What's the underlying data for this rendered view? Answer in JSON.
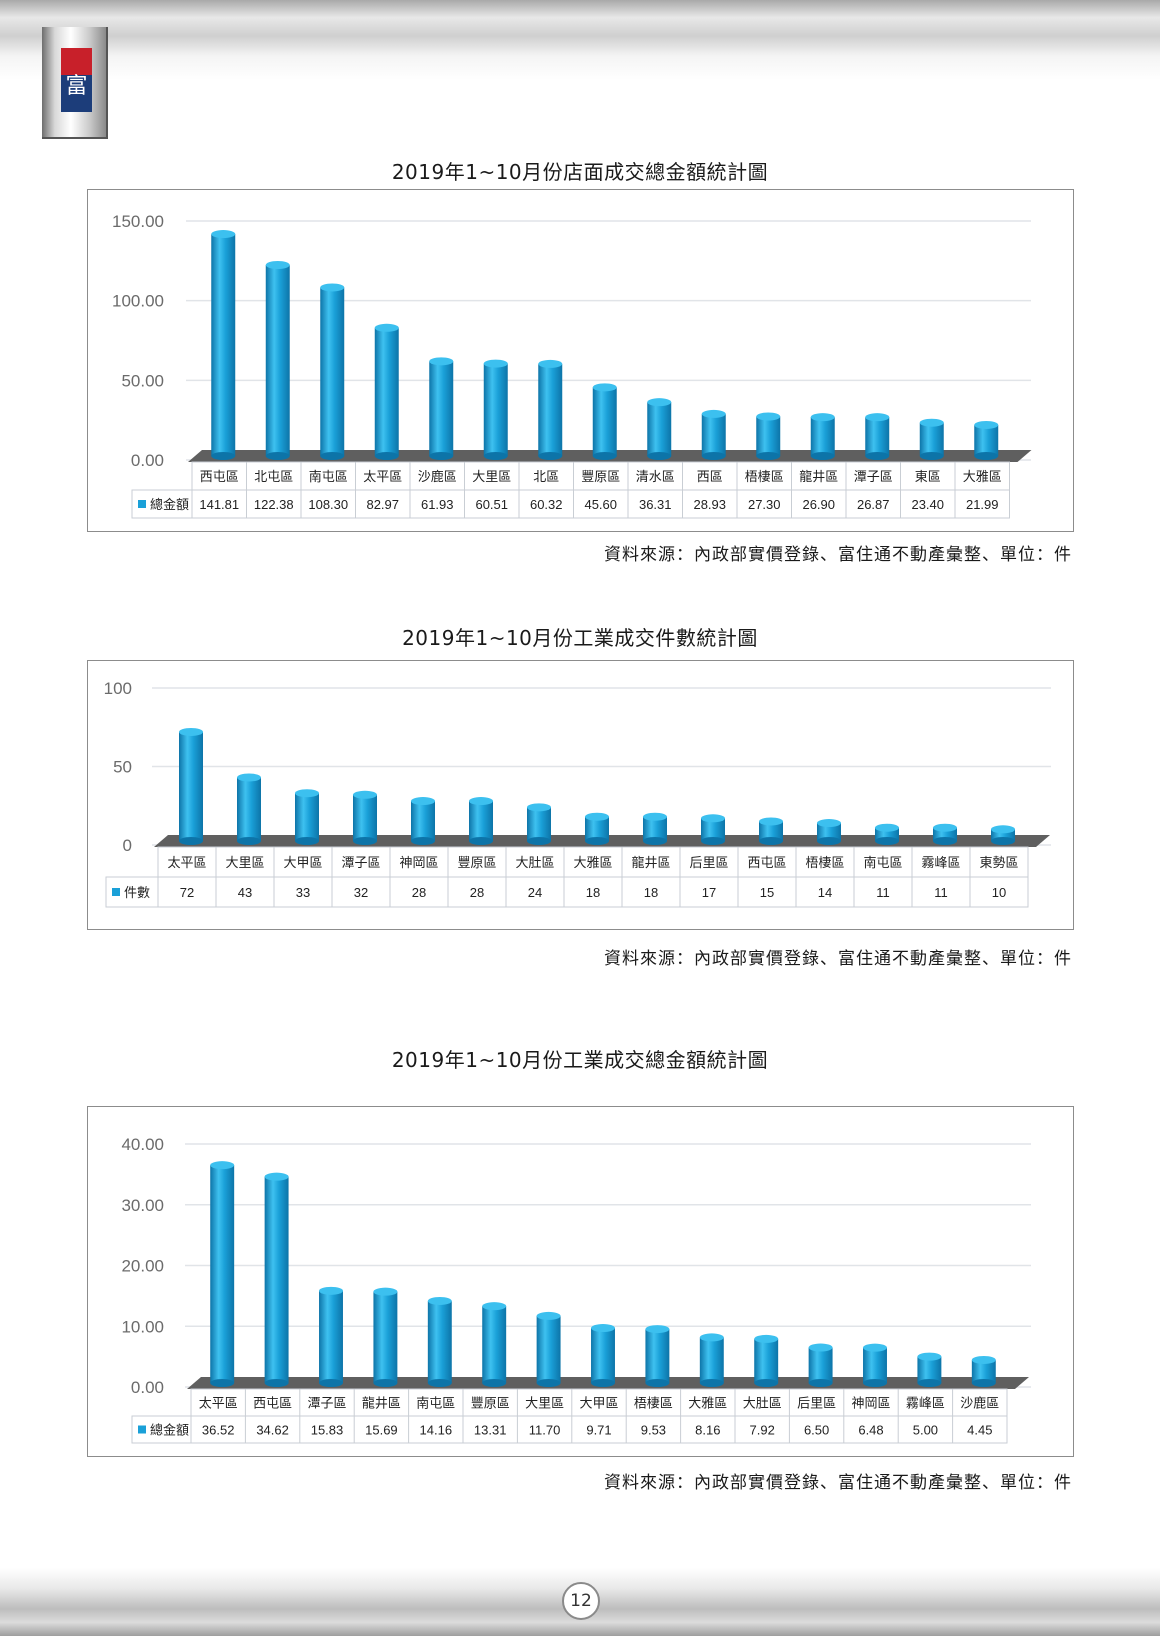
{
  "page_number": "12",
  "colors": {
    "bar": "#1aa0d8",
    "bar_dark": "#0d74a8",
    "floor": "#5f5f5f",
    "grid": "#e1e4e8",
    "axis_text": "#6b6b6b"
  },
  "charts": [
    {
      "title": "2019年1~10月份店面成交總金額統計圖",
      "source": "資料來源：內政部實價登錄、富住通不動產彙整、單位：件",
      "series_name": "總金額",
      "ticks": [
        "0.00",
        "50.00",
        "100.00",
        "150.00"
      ],
      "categories": [
        "西屯區",
        "北屯區",
        "南屯區",
        "太平區",
        "沙鹿區",
        "大里區",
        "北區",
        "豐原區",
        "清水區",
        "西區",
        "梧棲區",
        "龍井區",
        "潭子區",
        "東區",
        "大雅區"
      ],
      "value_labels": [
        "141.81",
        "122.38",
        "108.30",
        "82.97",
        "61.93",
        "60.51",
        "60.32",
        "45.60",
        "36.31",
        "28.93",
        "27.30",
        "26.90",
        "26.87",
        "23.40",
        "21.99"
      ]
    },
    {
      "title": "2019年1~10月份工業成交件數統計圖",
      "source": "資料來源：內政部實價登錄、富住通不動產彙整、單位：件",
      "series_name": "件數",
      "ticks": [
        "0",
        "50",
        "100"
      ],
      "categories": [
        "太平區",
        "大里區",
        "大甲區",
        "潭子區",
        "神岡區",
        "豐原區",
        "大肚區",
        "大雅區",
        "龍井區",
        "后里區",
        "西屯區",
        "梧棲區",
        "南屯區",
        "霧峰區",
        "東勢區"
      ],
      "value_labels": [
        "72",
        "43",
        "33",
        "32",
        "28",
        "28",
        "24",
        "18",
        "18",
        "17",
        "15",
        "14",
        "11",
        "11",
        "10"
      ]
    },
    {
      "title": "2019年1~10月份工業成交總金額統計圖",
      "source": "資料來源：內政部實價登錄、富住通不動產彙整、單位：件",
      "series_name": "總金額",
      "ticks": [
        "0.00",
        "10.00",
        "20.00",
        "30.00",
        "40.00"
      ],
      "categories": [
        "太平區",
        "西屯區",
        "潭子區",
        "龍井區",
        "南屯區",
        "豐原區",
        "大里區",
        "大甲區",
        "梧棲區",
        "大雅區",
        "大肚區",
        "后里區",
        "神岡區",
        "霧峰區",
        "沙鹿區"
      ],
      "value_labels": [
        "36.52",
        "34.62",
        "15.83",
        "15.69",
        "14.16",
        "13.31",
        "11.70",
        "9.71",
        "9.53",
        "8.16",
        "7.92",
        "6.50",
        "6.48",
        "5.00",
        "4.45"
      ]
    }
  ],
  "chart_data": [
    {
      "type": "bar",
      "title": "2019年1~10月份店面成交總金額統計圖",
      "categories": [
        "西屯區",
        "北屯區",
        "南屯區",
        "太平區",
        "沙鹿區",
        "大里區",
        "北區",
        "豐原區",
        "清水區",
        "西區",
        "梧棲區",
        "龍井區",
        "潭子區",
        "東區",
        "大雅區"
      ],
      "series": [
        {
          "name": "總金額",
          "values": [
            141.81,
            122.38,
            108.3,
            82.97,
            61.93,
            60.51,
            60.32,
            45.6,
            36.31,
            28.93,
            27.3,
            26.9,
            26.87,
            23.4,
            21.99
          ]
        }
      ],
      "ylim": [
        0,
        150
      ],
      "yticks": [
        0,
        50,
        100,
        150
      ],
      "grid": true,
      "legend": "data-table-left"
    },
    {
      "type": "bar",
      "title": "2019年1~10月份工業成交件數統計圖",
      "categories": [
        "太平區",
        "大里區",
        "大甲區",
        "潭子區",
        "神岡區",
        "豐原區",
        "大肚區",
        "大雅區",
        "龍井區",
        "后里區",
        "西屯區",
        "梧棲區",
        "南屯區",
        "霧峰區",
        "東勢區"
      ],
      "series": [
        {
          "name": "件數",
          "values": [
            72,
            43,
            33,
            32,
            28,
            28,
            24,
            18,
            18,
            17,
            15,
            14,
            11,
            11,
            10
          ]
        }
      ],
      "ylim": [
        0,
        100
      ],
      "yticks": [
        0,
        50,
        100
      ],
      "grid": true,
      "legend": "data-table-left"
    },
    {
      "type": "bar",
      "title": "2019年1~10月份工業成交總金額統計圖",
      "categories": [
        "太平區",
        "西屯區",
        "潭子區",
        "龍井區",
        "南屯區",
        "豐原區",
        "大里區",
        "大甲區",
        "梧棲區",
        "大雅區",
        "大肚區",
        "后里區",
        "神岡區",
        "霧峰區",
        "沙鹿區"
      ],
      "series": [
        {
          "name": "總金額",
          "values": [
            36.52,
            34.62,
            15.83,
            15.69,
            14.16,
            13.31,
            11.7,
            9.71,
            9.53,
            8.16,
            7.92,
            6.5,
            6.48,
            5.0,
            4.45
          ]
        }
      ],
      "ylim": [
        0,
        40
      ],
      "yticks": [
        0,
        10,
        20,
        30,
        40
      ],
      "grid": true,
      "legend": "data-table-left"
    }
  ]
}
